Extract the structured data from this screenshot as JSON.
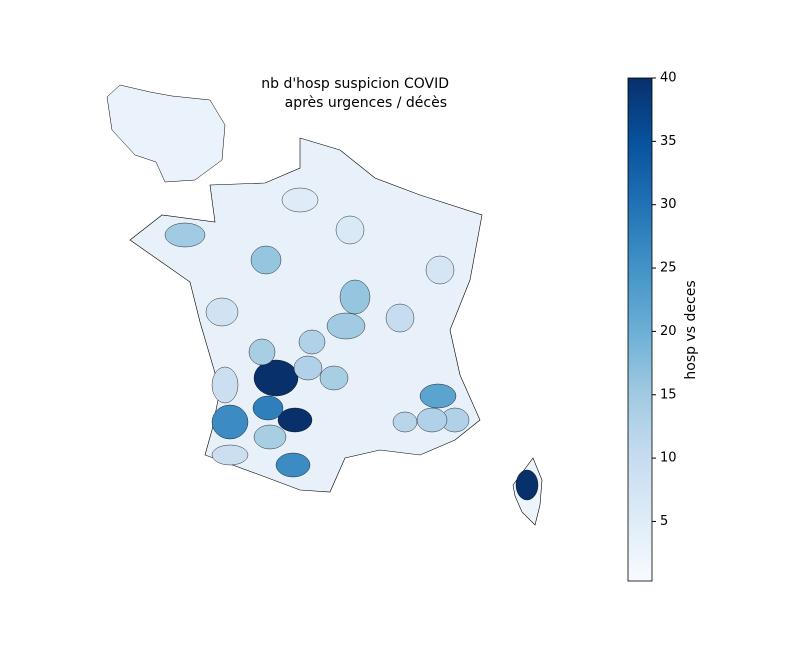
{
  "chart_data": {
    "type": "choropleth",
    "title": [
      "nb d'hosp suspicion COVID",
      "après urgences / décès"
    ],
    "colorbar_label": "hosp vs deces",
    "colormap": "Blues",
    "clim": [
      0.3,
      40
    ],
    "cticks": [
      5,
      10,
      15,
      20,
      25,
      30,
      35,
      40
    ],
    "values": [
      40,
      40,
      40,
      26,
      28,
      14,
      26,
      22,
      15,
      16,
      16,
      15,
      13,
      14,
      13,
      14,
      13,
      13,
      12,
      9,
      8,
      10,
      9,
      6,
      7,
      5
    ]
  }
}
